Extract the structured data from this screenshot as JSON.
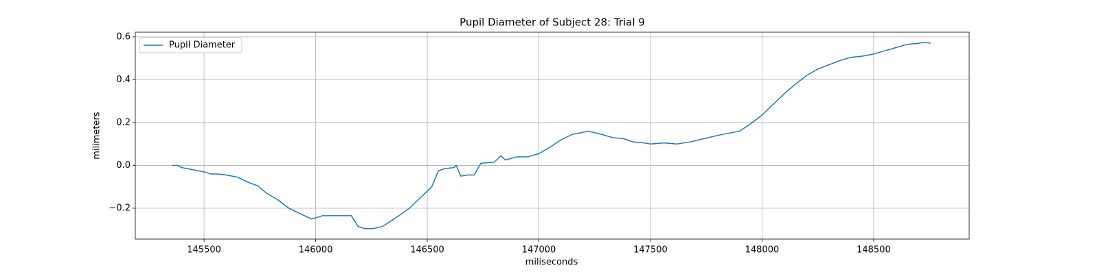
{
  "chart_data": {
    "type": "line",
    "title": "Pupil Diameter of Subject 28: Trial 9",
    "x_label": "miliseconds",
    "y_label": "milimeters",
    "x": [
      145358,
      145380,
      145400,
      145450,
      145500,
      145530,
      145560,
      145600,
      145650,
      145700,
      145740,
      145780,
      145830,
      145880,
      145930,
      145980,
      146000,
      146030,
      146100,
      146160,
      146190,
      146220,
      146260,
      146300,
      146330,
      146380,
      146420,
      146460,
      146490,
      146520,
      146550,
      146580,
      146620,
      146630,
      146650,
      146680,
      146710,
      146740,
      146800,
      146830,
      146850,
      146900,
      146950,
      147000,
      147050,
      147100,
      147150,
      147200,
      147220,
      147280,
      147330,
      147380,
      147420,
      147470,
      147500,
      147560,
      147620,
      147680,
      147740,
      147800,
      147850,
      147900,
      147950,
      148000,
      148050,
      148100,
      148150,
      148200,
      148250,
      148300,
      148350,
      148400,
      148450,
      148500,
      148550,
      148600,
      148650,
      148700,
      148730,
      148755
    ],
    "series": [
      {
        "name": "Pupil Diameter",
        "color": "#1f77b4",
        "values": [
          0.0,
          0.0,
          -0.01,
          -0.02,
          -0.03,
          -0.04,
          -0.04,
          -0.045,
          -0.055,
          -0.08,
          -0.095,
          -0.13,
          -0.16,
          -0.2,
          -0.225,
          -0.25,
          -0.245,
          -0.235,
          -0.235,
          -0.235,
          -0.285,
          -0.295,
          -0.295,
          -0.285,
          -0.265,
          -0.23,
          -0.2,
          -0.16,
          -0.13,
          -0.1,
          -0.025,
          -0.015,
          -0.01,
          0.0,
          -0.05,
          -0.045,
          -0.045,
          0.01,
          0.015,
          0.045,
          0.025,
          0.04,
          0.04,
          0.055,
          0.085,
          0.12,
          0.145,
          0.155,
          0.16,
          0.145,
          0.13,
          0.125,
          0.11,
          0.105,
          0.1,
          0.105,
          0.1,
          0.11,
          0.125,
          0.14,
          0.15,
          0.16,
          0.195,
          0.235,
          0.285,
          0.335,
          0.38,
          0.42,
          0.45,
          0.47,
          0.49,
          0.505,
          0.51,
          0.52,
          0.535,
          0.55,
          0.565,
          0.57,
          0.575,
          0.57
        ]
      }
    ],
    "xlim": [
      145192,
      148928
    ],
    "xticks": [
      145500,
      146000,
      146500,
      147000,
      147500,
      148000,
      148500
    ],
    "ylim": [
      -0.344,
      0.622
    ],
    "yticks": [
      {
        "value": -0.2,
        "label": "−0.2"
      },
      {
        "value": 0.0,
        "label": "0.0"
      },
      {
        "value": 0.2,
        "label": "0.2"
      },
      {
        "value": 0.4,
        "label": "0.4"
      },
      {
        "value": 0.6,
        "label": "0.6"
      }
    ],
    "grid": true,
    "legend": "upper left"
  }
}
